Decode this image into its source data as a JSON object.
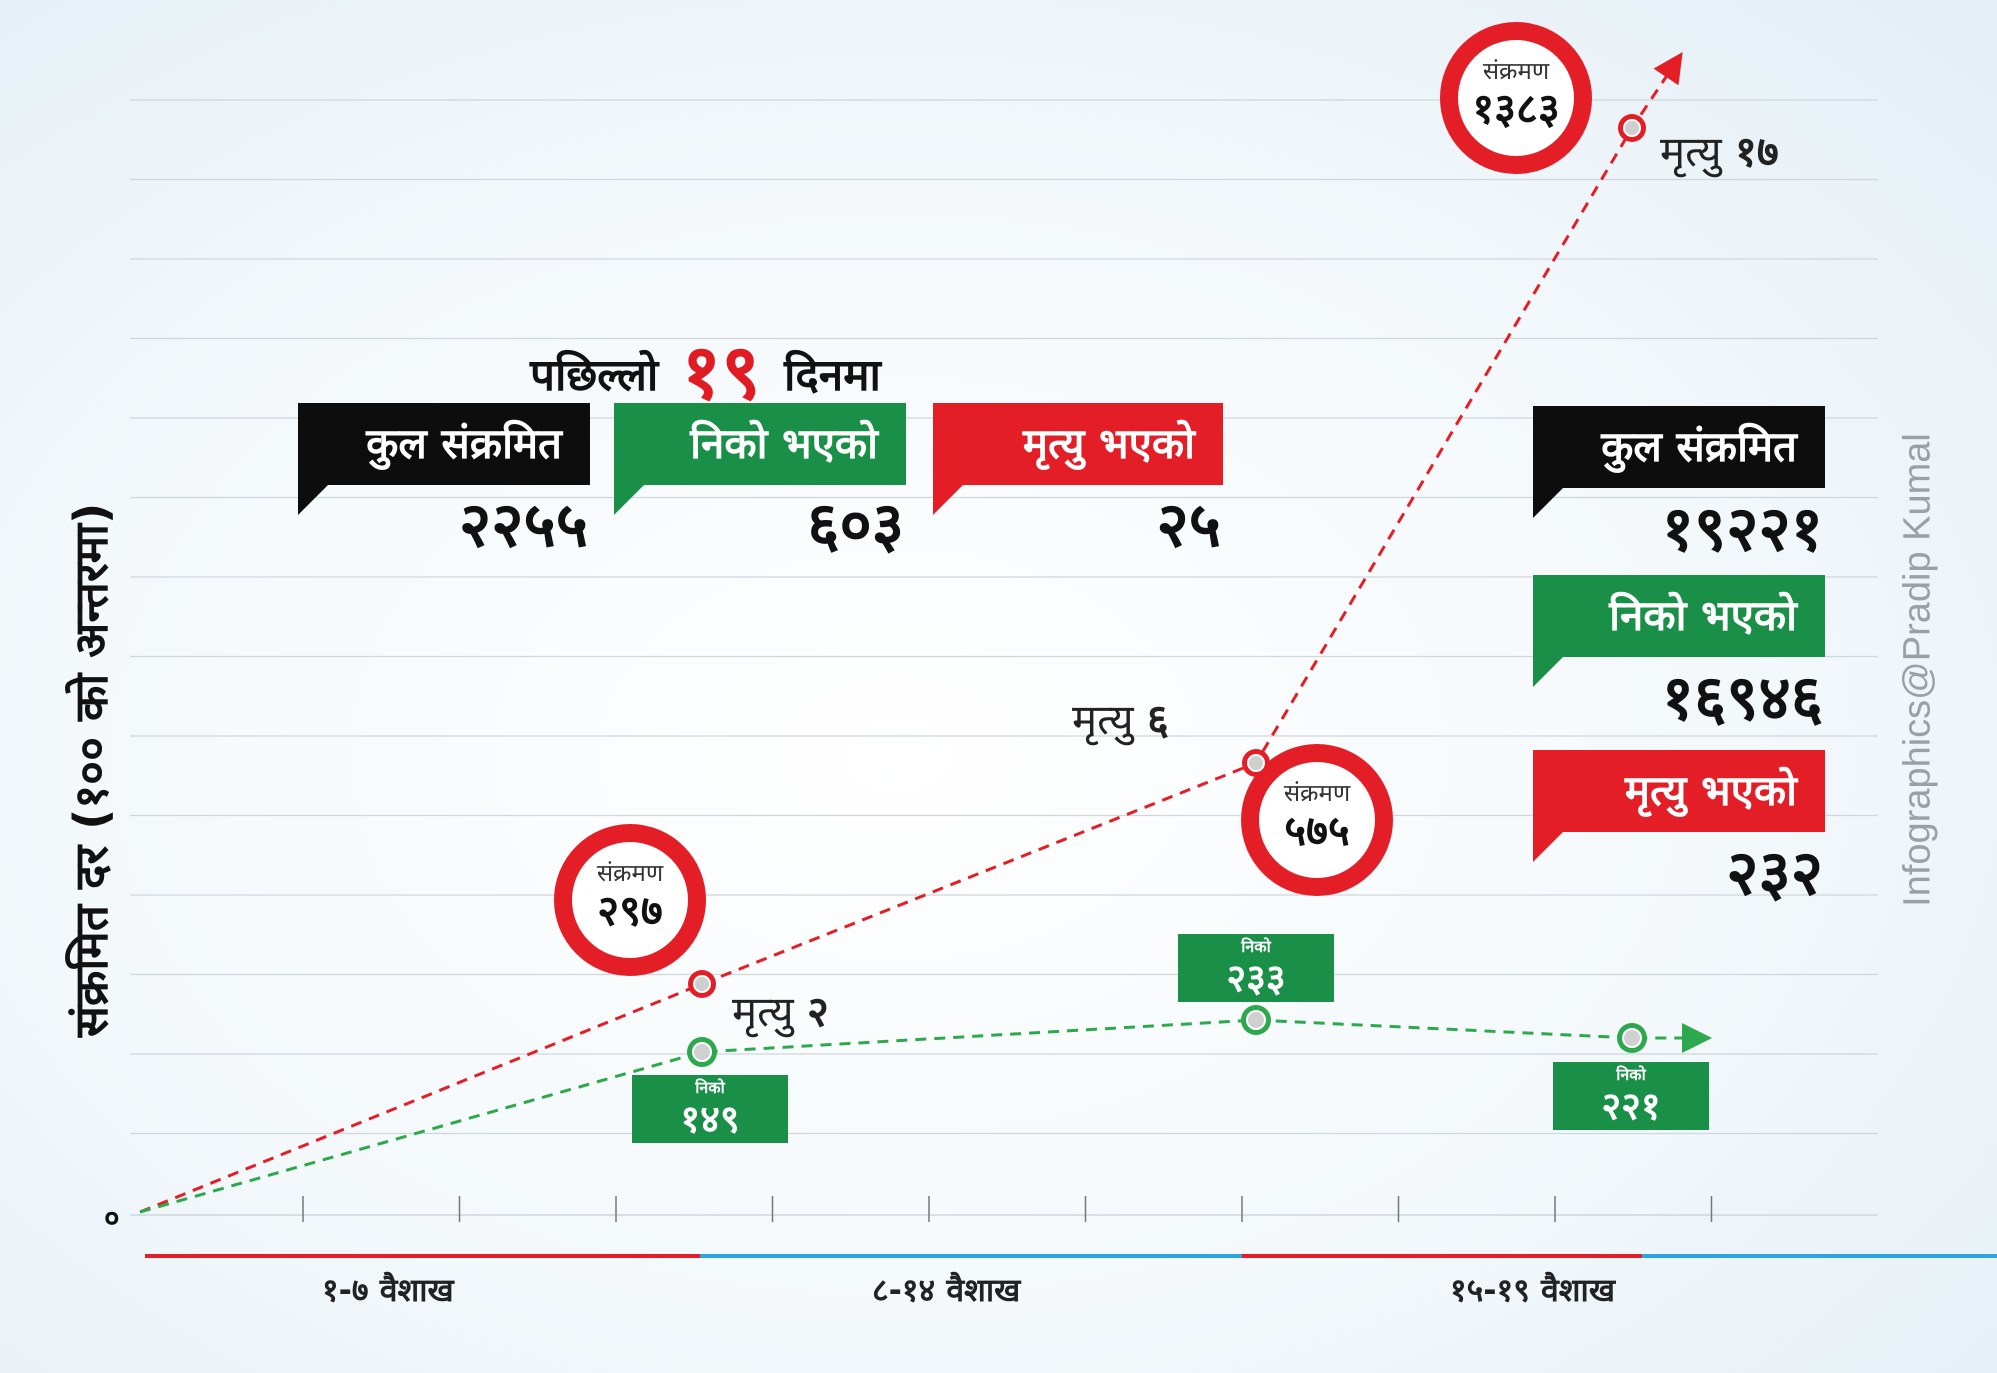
{
  "chart_data": {
    "type": "line",
    "title": "पछिल्लो १९ दिनमा",
    "ylabel": "संक्रमित दर (१०० को अन्तरमा)",
    "y_zero_label": "०",
    "categories": [
      "१-७ वैशाख",
      "८-१४ वैशाख",
      "१५-१९ वैशाख"
    ],
    "ylim": [
      0,
      1400
    ],
    "grid": true,
    "series": [
      {
        "name": "संक्रमण",
        "color": "#e41e26",
        "x": [
          0,
          1,
          2,
          3
        ],
        "values": [
          0,
          297,
          575,
          1383
        ],
        "point_labels": [
          "",
          "२९७",
          "५७५",
          "१३८३"
        ],
        "deaths": [
          "",
          "२",
          "६",
          "१७"
        ]
      },
      {
        "name": "निको",
        "color": "#2da84d",
        "x": [
          0,
          1,
          2,
          3
        ],
        "values": [
          0,
          149,
          233,
          221
        ],
        "point_labels": [
          "",
          "१४९",
          "२३३",
          "२२१"
        ]
      }
    ]
  },
  "labels": {
    "heading_pre": "पछिल्लो",
    "heading_num": "१९",
    "heading_post": "दिनमा",
    "infection_word": "संक्रमण",
    "death_word": "मृत्यु",
    "recovered_word": "निको",
    "credit": "Infographics@Pradip Kumal"
  },
  "summary_19_days": {
    "total": {
      "label": "कुल संक्रमित",
      "value": "२२५५"
    },
    "recovered": {
      "label": "निको भएको",
      "value": "६०३"
    },
    "deaths": {
      "label": "मृत्यु भएको",
      "value": "२५"
    }
  },
  "summary_overall": {
    "total": {
      "label": "कुल संक्रमित",
      "value": "१९२२१"
    },
    "recovered": {
      "label": "निको भएको",
      "value": "१६९४६"
    },
    "deaths": {
      "label": "मृत्यु भएको",
      "value": "२३२"
    }
  },
  "colors": {
    "red": "#e41e26",
    "green": "#1a8f47",
    "blue": "#2aa5e0",
    "black": "#0d0d0d"
  }
}
